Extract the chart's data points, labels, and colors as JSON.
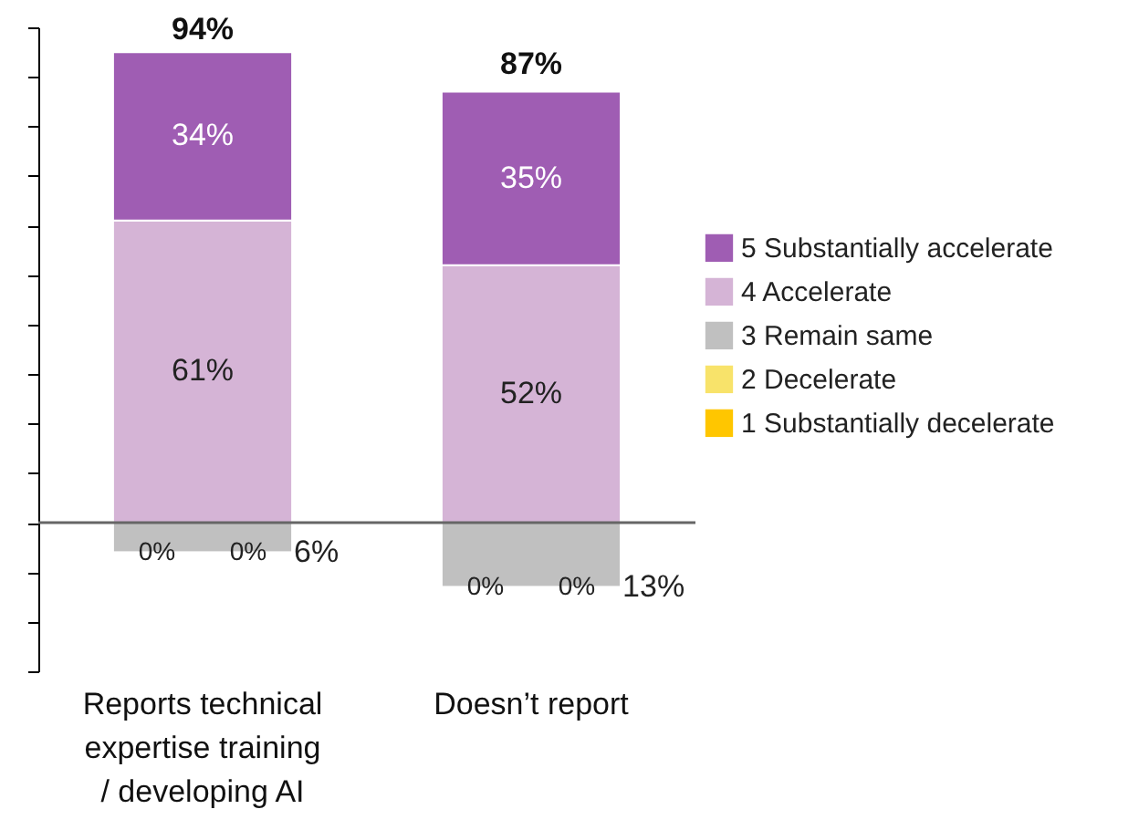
{
  "chart_data": {
    "type": "bar",
    "stacked": true,
    "categories": [
      "Reports technical expertise training / developing AI",
      "Doesn’t report"
    ],
    "series": [
      {
        "name": "4 Accelerate",
        "color": "#d5b4d6",
        "values": [
          61,
          52
        ],
        "value_labels": [
          "61%",
          "52%"
        ]
      },
      {
        "name": "5 Substantially accelerate",
        "color": "#9f5db3",
        "values": [
          34,
          35
        ],
        "value_labels": [
          "34%",
          "35%"
        ]
      },
      {
        "name": "3 Remain same",
        "color": "#c0c0c0",
        "values": [
          -6,
          -13
        ]
      },
      {
        "name": "2 Decelerate",
        "color": "#f8e36a",
        "values": [
          0,
          0
        ]
      },
      {
        "name": "1 Substantially decelerate",
        "color": "#ffc600",
        "values": [
          0,
          0
        ]
      }
    ],
    "annotations": [
      {
        "text": "94%",
        "x": "Reports technical expertise training / developing AI",
        "y": 94
      },
      {
        "text": "87%",
        "x": "Doesn’t report",
        "y": 87
      },
      {
        "text": "0%",
        "x": "Reports technical expertise training / developing AI",
        "y": -6
      },
      {
        "text": "0%",
        "x": "Reports technical expertise training / developing AI",
        "y": -6
      },
      {
        "text": "6%",
        "x": "Reports technical expertise training / developing AI",
        "y": -6
      },
      {
        "text": "0%",
        "x": "Doesn’t report",
        "y": -13
      },
      {
        "text": "0%",
        "x": "Doesn’t report",
        "y": -13
      },
      {
        "text": "13%",
        "x": "Doesn’t report",
        "y": -13
      }
    ],
    "ylim": [
      -30,
      100
    ],
    "yticks": [
      {
        "value": -30,
        "label": null
      },
      {
        "value": -20,
        "label": null
      },
      {
        "value": -10,
        "label": null
      },
      {
        "value": 0,
        "label": null
      },
      {
        "value": 10,
        "label": null
      },
      {
        "value": 20,
        "label": null
      },
      {
        "value": 30,
        "label": null
      },
      {
        "value": 40,
        "label": null
      },
      {
        "value": 50,
        "label": null
      },
      {
        "value": 60,
        "label": null
      },
      {
        "value": 70,
        "label": null
      },
      {
        "value": 80,
        "label": null
      },
      {
        "value": 90,
        "label": null
      },
      {
        "value": 100,
        "label": null
      }
    ],
    "ref_lines": [
      {
        "axis": "y",
        "value": 0,
        "color": "#666666"
      }
    ],
    "tick_labels": "x",
    "grid": false,
    "legend": "right"
  }
}
